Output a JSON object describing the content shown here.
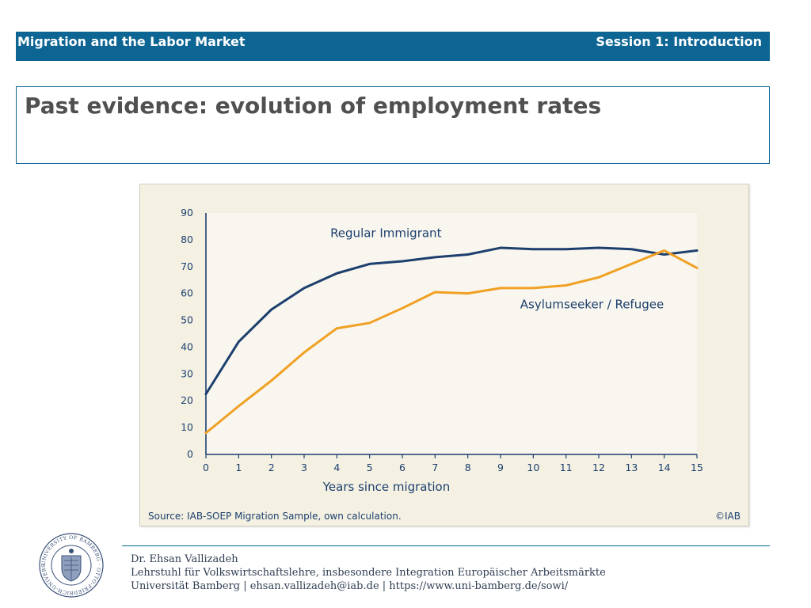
{
  "header": {
    "left_title": "Migration and the Labor Market",
    "right_title": "Session 1: Introduction",
    "bg_color": "#0d6594"
  },
  "slide": {
    "title": "Past evidence: evolution of employment rates"
  },
  "chart_data": {
    "type": "line",
    "x": [
      0,
      1,
      2,
      3,
      4,
      5,
      6,
      7,
      8,
      9,
      10,
      11,
      12,
      13,
      14,
      15
    ],
    "series": [
      {
        "name": "Regular Immigrant",
        "color": "#1c3f6e",
        "values": [
          22.5,
          42,
          54,
          62,
          67.5,
          71,
          72,
          73.5,
          74.5,
          77,
          76.5,
          76.5,
          77,
          76.5,
          74.5,
          76
        ]
      },
      {
        "name": "Asylumseeker / Refugee",
        "color": "#f0a023",
        "values": [
          8,
          18,
          27.5,
          38,
          47,
          49,
          54.5,
          60.5,
          60,
          62,
          62,
          63,
          66,
          71,
          76,
          69.5
        ]
      }
    ],
    "xlabel": "Years since migration",
    "ylabel": "",
    "yticks": [
      0,
      10,
      20,
      30,
      40,
      50,
      60,
      70,
      80,
      90
    ],
    "xticks": [
      0,
      1,
      2,
      3,
      4,
      5,
      6,
      7,
      8,
      9,
      10,
      11,
      12,
      13,
      14,
      15
    ],
    "xlim": [
      0,
      15
    ],
    "ylim": [
      0,
      90
    ],
    "grid": false,
    "source": "Source: IAB-SOEP Migration Sample, own calculation.",
    "copyright": "©IAB",
    "background": "#f4f1e3"
  },
  "footer": {
    "seal_label": "UNIVERSITY OF BAMBERG · OTTO-FRIEDRICH-UNIVERSITÄT BAMBERG",
    "author": "Dr. Ehsan Vallizadeh",
    "chair": "Lehrstuhl für Volkswirtschaftslehre, insbesondere Integration Europäischer Arbeitsmärkte",
    "contact": "Universität Bamberg | ehsan.vallizadeh@iab.de | https://www.uni-bamberg.de/sowi/"
  }
}
